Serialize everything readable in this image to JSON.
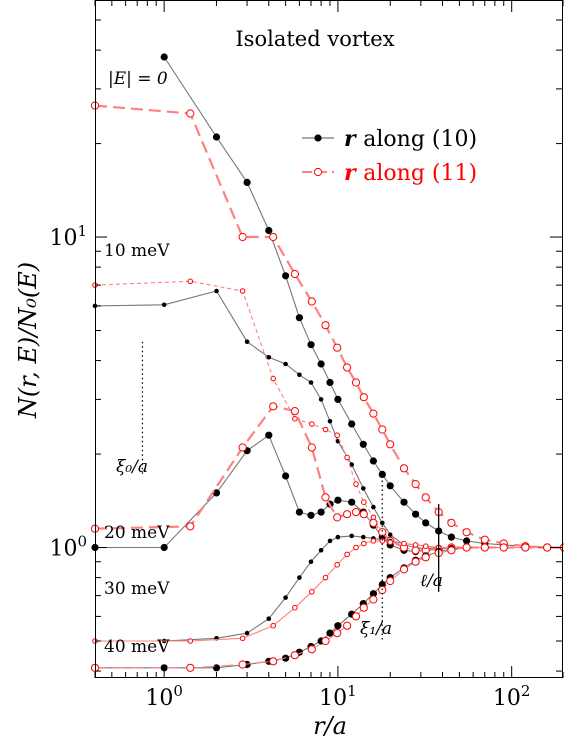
{
  "chart_data": {
    "type": "scatter",
    "title": "Isolated vortex",
    "xlabel": "r/a",
    "ylabel": "N(r, E)/N₀(E)",
    "xscale": "log",
    "yscale": "log",
    "xlim": [
      0.4,
      200
    ],
    "ylim": [
      0.38,
      58
    ],
    "x_ticks": [
      {
        "value": 1,
        "label_base": "10",
        "label_exp": "0"
      },
      {
        "value": 10,
        "label_base": "10",
        "label_exp": "1"
      },
      {
        "value": 100,
        "label_base": "10",
        "label_exp": "2"
      }
    ],
    "y_ticks": [
      {
        "value": 1,
        "label_base": "10",
        "label_exp": "0"
      },
      {
        "value": 10,
        "label_base": "10",
        "label_exp": "1"
      }
    ],
    "legend": {
      "placement": "top-right",
      "entries": [
        {
          "prefix": "r",
          "text": "along (10)",
          "color": "#000000",
          "marker": "filled"
        },
        {
          "prefix": "r",
          "text": "along (11)",
          "color": "#ff0000",
          "marker": "open"
        }
      ]
    },
    "curve_labels": [
      {
        "text": "|E| = 0",
        "series": "E0"
      },
      {
        "text": "10 meV",
        "series": "E10"
      },
      {
        "text": "20 meV",
        "series": "E20"
      },
      {
        "text": "30 meV",
        "series": "E30"
      },
      {
        "text": "40 meV",
        "series": "E40"
      }
    ],
    "annotations": [
      {
        "text": "ξ₀/a",
        "x": 0.75,
        "y_range": [
          1.7,
          4.6
        ]
      },
      {
        "text": "ξ₁/a",
        "x": 18,
        "y_range": [
          0.5,
          1.7
        ]
      },
      {
        "text": "ℓ/a",
        "x": 38,
        "y_range": [
          0.72,
          1.38
        ]
      }
    ],
    "series": [
      {
        "energy": "0",
        "direction": "10",
        "color": "#000000",
        "x": [
          1,
          2,
          3,
          4,
          5,
          6,
          7,
          8,
          9,
          10,
          12,
          14,
          16,
          18,
          20,
          24,
          28,
          32,
          38,
          45,
          55,
          70,
          90,
          120,
          160,
          200
        ],
        "y": [
          38,
          21,
          15,
          10.5,
          7.5,
          5.5,
          4.5,
          3.9,
          3.4,
          3.0,
          2.5,
          2.15,
          1.9,
          1.72,
          1.58,
          1.4,
          1.28,
          1.2,
          1.13,
          1.08,
          1.05,
          1.03,
          1.02,
          1.01,
          1.0,
          1.0
        ]
      },
      {
        "energy": "0",
        "direction": "11",
        "color": "#ff0000",
        "x": [
          0.4,
          1.414,
          2.828,
          4.243,
          5.657,
          7.071,
          8.485,
          9.9,
          11.3,
          12.7,
          14.1,
          16,
          18,
          20,
          24,
          28,
          32,
          38,
          45,
          55,
          70,
          90,
          120,
          160,
          200
        ],
        "y": [
          26.5,
          25,
          10,
          10,
          7.6,
          6.2,
          5.2,
          4.4,
          3.8,
          3.4,
          3.05,
          2.7,
          2.4,
          2.15,
          1.8,
          1.6,
          1.45,
          1.3,
          1.2,
          1.12,
          1.06,
          1.03,
          1.01,
          1.0,
          1.0
        ]
      },
      {
        "energy": "10",
        "direction": "10",
        "color": "#000000",
        "x": [
          0.4,
          1,
          2,
          3,
          4,
          5,
          6,
          7,
          8,
          9,
          10,
          12,
          14,
          16,
          18,
          20,
          24,
          28,
          32,
          38,
          45,
          55
        ],
        "y": [
          6.0,
          6.05,
          6.7,
          4.6,
          4.1,
          3.9,
          3.6,
          3.4,
          3.0,
          2.55,
          2.2,
          1.85,
          1.55,
          1.35,
          1.2,
          1.1,
          1.02,
          1.0,
          0.99,
          1.0,
          1.0,
          1.0
        ]
      },
      {
        "energy": "10",
        "direction": "11",
        "color": "#ff0000",
        "x": [
          0.4,
          1.414,
          2.828,
          4.243,
          5.657,
          7.071,
          8.485,
          9.9,
          11.3,
          12.7,
          14.1,
          16,
          18,
          20,
          24,
          28,
          32,
          38,
          45,
          55
        ],
        "y": [
          7.0,
          7.2,
          6.7,
          3.5,
          2.6,
          2.5,
          2.4,
          2.3,
          1.95,
          1.6,
          1.4,
          1.25,
          1.12,
          1.05,
          1.0,
          0.98,
          0.98,
          0.99,
          1.0,
          1.0
        ]
      },
      {
        "energy": "20",
        "direction": "10",
        "color": "#000000",
        "x": [
          0.4,
          1,
          2,
          3,
          4,
          5,
          6,
          7,
          8,
          9,
          10,
          12,
          14,
          16,
          18,
          20,
          24,
          28,
          32,
          38,
          45,
          55,
          70,
          90,
          120,
          160,
          200
        ],
        "y": [
          1.0,
          1.0,
          1.5,
          2.05,
          2.3,
          1.7,
          1.3,
          1.27,
          1.3,
          1.38,
          1.42,
          1.4,
          1.3,
          1.18,
          1.08,
          1.02,
          0.98,
          0.97,
          0.98,
          0.99,
          1.0,
          1.0,
          1.0,
          1.0,
          1.0,
          1.0,
          1.0
        ]
      },
      {
        "energy": "20",
        "direction": "11",
        "color": "#ff0000",
        "x": [
          0.4,
          1.414,
          2.828,
          4.243,
          5.657,
          7.071,
          8.485,
          9.9,
          11.3,
          12.7,
          14.1,
          16,
          18,
          20,
          24,
          28,
          32,
          38,
          45,
          55,
          70,
          90,
          120,
          160,
          200
        ],
        "y": [
          1.15,
          1.17,
          2.1,
          2.85,
          2.75,
          2.1,
          1.45,
          1.25,
          1.28,
          1.3,
          1.28,
          1.2,
          1.12,
          1.05,
          1.0,
          0.98,
          0.98,
          0.99,
          1.0,
          1.0,
          1.0,
          1.0,
          1.0,
          1.0,
          1.0
        ]
      },
      {
        "energy": "30",
        "direction": "10",
        "color": "#000000",
        "x": [
          0.4,
          1,
          2,
          3,
          4,
          5,
          6,
          7,
          8,
          9,
          10,
          12,
          14,
          16,
          18,
          20,
          24,
          28,
          32,
          38,
          45,
          55
        ],
        "y": [
          0.5,
          0.5,
          0.51,
          0.53,
          0.59,
          0.69,
          0.8,
          0.9,
          0.98,
          1.05,
          1.08,
          1.09,
          1.08,
          1.07,
          1.06,
          1.05,
          1.03,
          1.02,
          1.01,
          1.0,
          1.0,
          1.0
        ]
      },
      {
        "energy": "30",
        "direction": "11",
        "color": "#ff0000",
        "x": [
          0.4,
          1.414,
          2.828,
          4.243,
          5.657,
          7.071,
          8.485,
          9.9,
          11.3,
          12.7,
          14.1,
          16,
          18,
          20,
          24,
          28,
          32,
          38,
          45,
          55
        ],
        "y": [
          0.5,
          0.5,
          0.51,
          0.56,
          0.64,
          0.72,
          0.8,
          0.88,
          0.95,
          1.0,
          1.03,
          1.05,
          1.05,
          1.04,
          1.03,
          1.02,
          1.01,
          1.0,
          1.0,
          1.0
        ]
      },
      {
        "energy": "40",
        "direction": "10",
        "color": "#000000",
        "x": [
          0.4,
          1,
          2,
          3,
          4,
          5,
          6,
          7,
          8,
          9,
          10,
          12,
          14,
          16,
          18,
          20,
          24,
          28,
          32,
          38,
          45,
          55,
          70,
          90,
          120,
          160,
          200
        ],
        "y": [
          0.41,
          0.41,
          0.41,
          0.42,
          0.43,
          0.44,
          0.46,
          0.48,
          0.5,
          0.53,
          0.56,
          0.61,
          0.66,
          0.71,
          0.76,
          0.8,
          0.86,
          0.91,
          0.94,
          0.97,
          0.99,
          1.0,
          1.0,
          1.0,
          1.0,
          1.0,
          1.0
        ]
      },
      {
        "energy": "40",
        "direction": "11",
        "color": "#ff0000",
        "x": [
          0.4,
          1.414,
          2.828,
          4.243,
          5.657,
          7.071,
          8.485,
          9.9,
          11.3,
          12.7,
          14.1,
          16,
          18,
          20,
          24,
          28,
          32,
          38,
          45,
          55,
          70,
          90,
          120,
          160,
          200
        ],
        "y": [
          0.41,
          0.41,
          0.42,
          0.43,
          0.45,
          0.47,
          0.5,
          0.53,
          0.56,
          0.6,
          0.64,
          0.68,
          0.73,
          0.78,
          0.85,
          0.9,
          0.93,
          0.96,
          0.98,
          1.0,
          1.0,
          1.0,
          1.0,
          1.0,
          1.0
        ]
      }
    ]
  }
}
